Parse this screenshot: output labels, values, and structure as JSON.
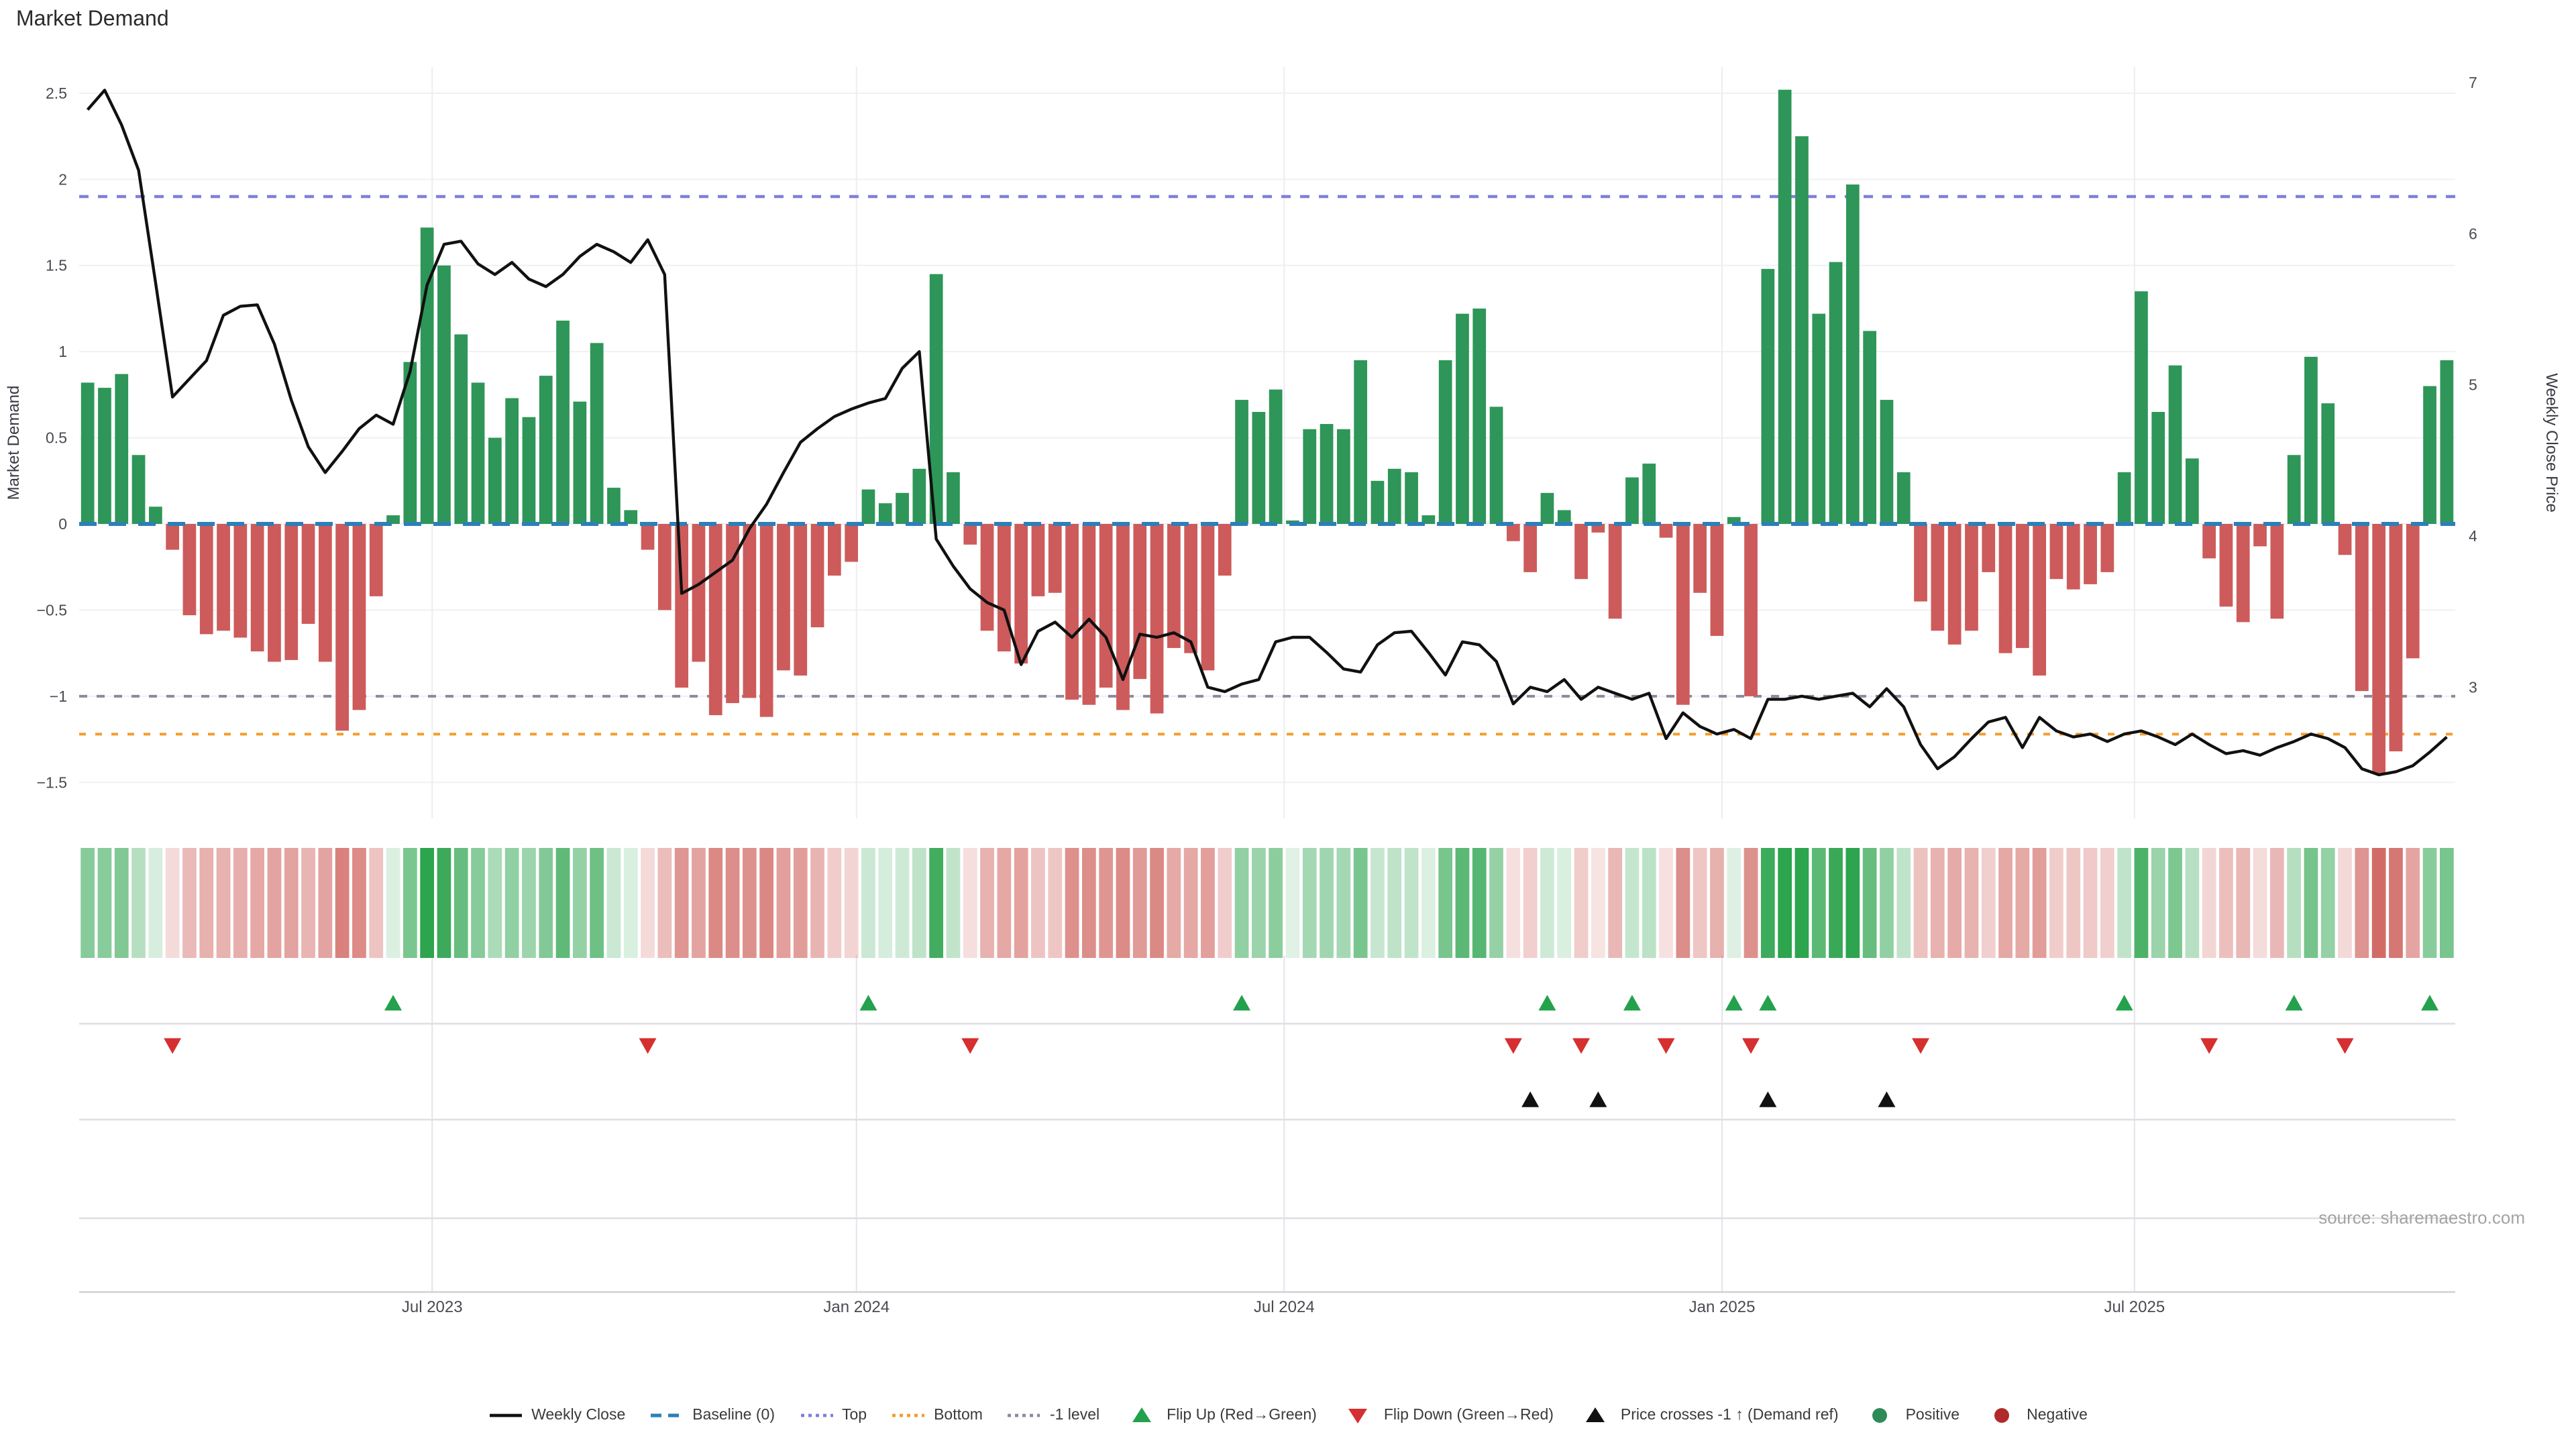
{
  "title": "Market Demand",
  "source": "source: sharemaestro.com",
  "legend": {
    "items": [
      {
        "label": "Weekly Close",
        "swatch": "line",
        "color": "#111111"
      },
      {
        "label": "Baseline (0)",
        "swatch": "dash",
        "color": "#2d7fb8"
      },
      {
        "label": "Top",
        "swatch": "dots",
        "color": "#7f7fdb"
      },
      {
        "label": "Bottom",
        "swatch": "dots",
        "color": "#f39c2d"
      },
      {
        "label": "-1 level",
        "swatch": "dots",
        "color": "#8a8a99"
      },
      {
        "label": "Flip Up (Red→Green)",
        "swatch": "tri-up",
        "color": "#23a14c"
      },
      {
        "label": "Flip Down (Green→Red)",
        "swatch": "tri-down",
        "color": "#d62f2f"
      },
      {
        "label": "Price crosses -1 ↑ (Demand ref)",
        "swatch": "tri-up",
        "color": "#111111"
      },
      {
        "label": "Positive",
        "swatch": "circle",
        "color": "#2e8b57"
      },
      {
        "label": "Negative",
        "swatch": "circle",
        "color": "#b02a2a"
      }
    ]
  },
  "chart_data": {
    "type": "combo",
    "title": "Market Demand",
    "x_unit": "weekly",
    "n_weeks": 140,
    "x_tick_labels": [
      "Jul 2023",
      "Jan 2024",
      "Jul 2024",
      "Jan 2025",
      "Jul 2025"
    ],
    "x_tick_weeks": [
      20.8,
      45.8,
      71.0,
      96.8,
      121.1
    ],
    "demand_axis": {
      "label": "Market Demand",
      "ticks": [
        2.5,
        2,
        1.5,
        1,
        0.5,
        0,
        -0.5,
        -1,
        -1.5
      ]
    },
    "price_axis": {
      "label": "Weekly Close Price",
      "ticks": [
        7,
        6,
        5,
        4,
        3
      ]
    },
    "ref_lines": {
      "baseline": 0,
      "top": 1.9,
      "bottom": -1.22,
      "minus_one": -1.0
    },
    "series": [
      {
        "name": "Market Demand",
        "type": "bar",
        "values": [
          0.82,
          0.79,
          0.87,
          0.4,
          0.1,
          -0.15,
          -0.53,
          -0.64,
          -0.62,
          -0.66,
          -0.74,
          -0.8,
          -0.79,
          -0.58,
          -0.8,
          -1.2,
          -1.08,
          -0.42,
          0.05,
          0.94,
          1.72,
          1.5,
          1.1,
          0.82,
          0.5,
          0.73,
          0.62,
          0.86,
          1.18,
          0.71,
          1.05,
          0.21,
          0.08,
          -0.15,
          -0.5,
          -0.95,
          -0.8,
          -1.11,
          -1.04,
          -1.01,
          -1.12,
          -0.85,
          -0.88,
          -0.6,
          -0.3,
          -0.22,
          0.2,
          0.12,
          0.18,
          0.32,
          1.45,
          0.3,
          -0.12,
          -0.62,
          -0.74,
          -0.81,
          -0.42,
          -0.4,
          -1.02,
          -1.05,
          -0.95,
          -1.08,
          -0.9,
          -1.1,
          -0.72,
          -0.75,
          -0.85,
          -0.3,
          0.72,
          0.65,
          0.78,
          0.02,
          0.55,
          0.58,
          0.55,
          0.95,
          0.25,
          0.32,
          0.3,
          0.05,
          0.95,
          1.22,
          1.25,
          0.68,
          -0.1,
          -0.28,
          0.18,
          0.08,
          -0.32,
          -0.05,
          -0.55,
          0.27,
          0.35,
          -0.08,
          -1.05,
          -0.4,
          -0.65,
          0.04,
          -1.0,
          1.48,
          2.52,
          2.25,
          1.22,
          1.52,
          1.97,
          1.12,
          0.72,
          0.3,
          -0.45,
          -0.62,
          -0.7,
          -0.62,
          -0.28,
          -0.75,
          -0.72,
          -0.88,
          -0.32,
          -0.38,
          -0.35,
          -0.28,
          0.3,
          1.35,
          0.65,
          0.92,
          0.38,
          -0.2,
          -0.48,
          -0.57,
          -0.13,
          -0.55,
          0.4,
          0.97,
          0.7,
          -0.18,
          -0.97,
          -1.45,
          -1.32,
          -0.78,
          0.8,
          0.95
        ]
      },
      {
        "name": "Weekly Close",
        "type": "line",
        "values": [
          6.82,
          6.95,
          6.72,
          6.42,
          5.68,
          4.92,
          5.04,
          5.16,
          5.46,
          5.52,
          5.53,
          5.27,
          4.9,
          4.59,
          4.42,
          4.56,
          4.71,
          4.8,
          4.74,
          5.09,
          5.66,
          5.93,
          5.95,
          5.8,
          5.73,
          5.81,
          5.7,
          5.65,
          5.73,
          5.85,
          5.93,
          5.88,
          5.81,
          5.96,
          5.73,
          3.62,
          3.68,
          3.76,
          3.84,
          4.05,
          4.21,
          4.42,
          4.62,
          4.71,
          4.79,
          4.84,
          4.88,
          4.91,
          5.11,
          5.22,
          3.98,
          3.8,
          3.65,
          3.56,
          3.51,
          3.15,
          3.37,
          3.43,
          3.33,
          3.45,
          3.33,
          3.05,
          3.35,
          3.33,
          3.36,
          3.3,
          3.0,
          2.97,
          3.02,
          3.05,
          3.3,
          3.33,
          3.33,
          3.23,
          3.12,
          3.1,
          3.28,
          3.36,
          3.37,
          3.23,
          3.08,
          3.3,
          3.28,
          3.17,
          2.89,
          3.0,
          2.97,
          3.05,
          2.92,
          3.0,
          2.96,
          2.92,
          2.96,
          2.66,
          2.83,
          2.74,
          2.69,
          2.72,
          2.66,
          2.92,
          2.92,
          2.94,
          2.92,
          2.94,
          2.96,
          2.87,
          2.99,
          2.87,
          2.62,
          2.46,
          2.54,
          2.66,
          2.77,
          2.8,
          2.6,
          2.8,
          2.71,
          2.67,
          2.69,
          2.64,
          2.69,
          2.71,
          2.67,
          2.62,
          2.69,
          2.62,
          2.56,
          2.58,
          2.55,
          2.6,
          2.64,
          2.69,
          2.66,
          2.6,
          2.46,
          2.42,
          2.44,
          2.48,
          2.57,
          2.67
        ]
      }
    ],
    "markers": {
      "flip_up_weeks": [
        18,
        46,
        68,
        86,
        91,
        97,
        99,
        120,
        130,
        138
      ],
      "flip_down_weeks": [
        5,
        33,
        52,
        84,
        88,
        93,
        98,
        108,
        125,
        133
      ],
      "price_cross_weeks": [
        85,
        89,
        99,
        106
      ]
    },
    "heatmap": {
      "note": "weekly strip, green=positive demand, red=negative, intensity ~ |value|"
    },
    "colors": {
      "bar_positive": "#2e9658",
      "bar_negative": "#cd5b5b",
      "price_line": "#111111",
      "baseline": "#2d7fb8",
      "top_line": "#7f7fdb",
      "bottom_line": "#f39c2d",
      "minus_one": "#8a8a99",
      "flip_up": "#23a14c",
      "flip_down": "#d62f2f",
      "price_cross": "#111111"
    }
  }
}
